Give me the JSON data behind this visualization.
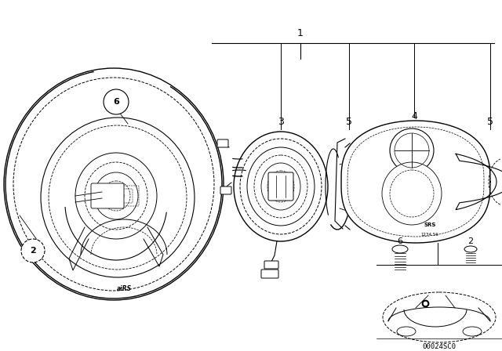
{
  "bg_color": "#ffffff",
  "line_color": "#000000",
  "fig_width": 6.4,
  "fig_height": 4.48,
  "dpi": 100,
  "diagram_code_text": "00024SC0"
}
